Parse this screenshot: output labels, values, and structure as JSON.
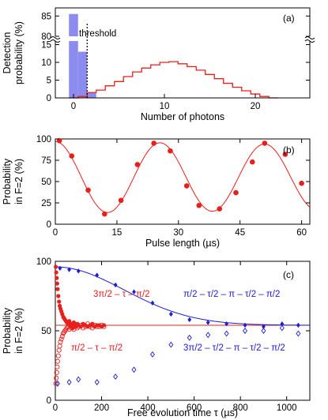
{
  "colors": {
    "red": "#e8201c",
    "blue": "#1e1ed2",
    "histfill": "#8c8cf0",
    "axis": "#000000"
  },
  "chart_data": [
    {
      "type": "bar",
      "panel_label": "(a)",
      "xlabel": "Number of photons",
      "ylabel_line1": "Detection",
      "ylabel_line2": "probability (%)",
      "xlim": [
        -2,
        26
      ],
      "ylim_lower": [
        0,
        16
      ],
      "ylim_upper": [
        80,
        87
      ],
      "xticks": [
        0,
        10,
        20
      ],
      "yticks_lower": [
        0,
        5,
        10,
        15
      ],
      "yticks_upper": [
        80,
        85
      ],
      "annotation": "threshold",
      "threshold_x": 1.5,
      "series": [
        {
          "style": "filled",
          "x": [
            -0.5,
            0.5,
            1.5
          ],
          "values": [
            85.5,
            13.0,
            1.5
          ]
        },
        {
          "style": "step",
          "x": [
            -0.5,
            0.5,
            1.5,
            2.5,
            3.5,
            4.5,
            5.5,
            6.5,
            7.5,
            8.5,
            9.5,
            10.5,
            11.5,
            12.5,
            13.5,
            14.5,
            15.5,
            16.5,
            17.5,
            18.5,
            19.5,
            20.5,
            21.5
          ],
          "values": [
            0,
            0.4,
            1.5,
            2.2,
            3.4,
            4.6,
            6.0,
            7.3,
            8.4,
            9.3,
            10.0,
            10.2,
            9.6,
            8.8,
            7.8,
            6.6,
            5.4,
            4.1,
            3.0,
            2.0,
            1.1,
            0.4,
            0
          ]
        }
      ]
    },
    {
      "type": "scatter",
      "panel_label": "(b)",
      "xlabel": "Pulse length (µs)",
      "ylabel_line1": "Probability",
      "ylabel_line2": "in F=2 (%)",
      "xlim": [
        0,
        62
      ],
      "ylim": [
        0,
        100
      ],
      "xticks": [
        0,
        15,
        30,
        45,
        60
      ],
      "yticks": [
        0,
        25,
        50,
        75,
        100
      ],
      "fit": {
        "offset": 55,
        "amplitude": 42,
        "period": 25.5,
        "decay_tau": 700
      },
      "series": [
        {
          "x": [
            1,
            4,
            8,
            12,
            16,
            20,
            24,
            28,
            32,
            35,
            40,
            44,
            48,
            51,
            56,
            60
          ],
          "values": [
            98,
            80,
            40,
            12,
            28,
            70,
            95,
            86,
            45,
            22,
            18,
            37,
            73,
            95,
            82,
            48
          ]
        }
      ]
    },
    {
      "type": "scatter",
      "panel_label": "(c)",
      "xlabel": "Free evolution time τ (µs)",
      "ylabel_line1": "Probability",
      "ylabel_line2": "in F=2 (%)",
      "xlim": [
        0,
        1100
      ],
      "ylim": [
        0,
        100
      ],
      "xticks": [
        0,
        200,
        400,
        600,
        800,
        1000
      ],
      "yticks": [
        0,
        50,
        100
      ],
      "baseline": 54,
      "series": [
        {
          "name": "3π/2 – τ – π/2",
          "marker": "filled-circle",
          "color": "red",
          "x": [
            2,
            4,
            6,
            8,
            10,
            13,
            16,
            19,
            22,
            26,
            30,
            34,
            38,
            42,
            46,
            50,
            55,
            60,
            65,
            70,
            75,
            80,
            85,
            90,
            95,
            100,
            110,
            120,
            130,
            140,
            150,
            160,
            170,
            180,
            190,
            200,
            210
          ],
          "values": [
            96,
            92,
            88,
            84,
            80,
            75,
            71,
            68,
            66,
            64,
            62,
            60,
            59,
            58,
            57,
            56,
            55,
            57,
            53,
            55,
            52,
            56,
            54,
            53,
            55,
            54,
            53,
            55,
            54,
            53,
            54,
            55,
            53,
            54,
            54,
            53,
            54
          ]
        },
        {
          "name": "π/2 – τ – π/2",
          "marker": "open-circle",
          "color": "red",
          "x": [
            2,
            4,
            6,
            8,
            10,
            13,
            16,
            19,
            22,
            26,
            30,
            34,
            38,
            42,
            46,
            50,
            55,
            60,
            65,
            70,
            75,
            80,
            85,
            90,
            95,
            100,
            110,
            120,
            130,
            140,
            150,
            160,
            170,
            180,
            190,
            200,
            210
          ],
          "values": [
            12,
            16,
            20,
            24,
            28,
            32,
            36,
            39,
            42,
            44,
            46,
            48,
            49,
            50,
            51,
            52,
            53,
            51,
            54,
            52,
            55,
            51,
            53,
            54,
            52,
            53,
            54,
            52,
            53,
            55,
            53,
            52,
            54,
            53,
            53,
            54,
            53
          ]
        },
        {
          "name": "π/2 – τ/2 – π – τ/2 – π/2",
          "marker": "filled-diamond",
          "color": "blue",
          "x": [
            20,
            60,
            100,
            180,
            260,
            340,
            420,
            500,
            580,
            660,
            740,
            820,
            900,
            980,
            1050
          ],
          "values": [
            95,
            94,
            93,
            90,
            83,
            78,
            70,
            62,
            58,
            56,
            55,
            54,
            53,
            55,
            54
          ]
        },
        {
          "name": "3π/2 – τ/2 – π – τ/2 – π/2",
          "marker": "open-diamond",
          "color": "blue",
          "x": [
            10,
            60,
            100,
            180,
            260,
            340,
            420,
            500,
            580,
            660,
            740,
            820,
            900,
            980,
            1050
          ],
          "values": [
            12,
            13,
            15,
            13,
            17,
            22,
            33,
            40,
            45,
            47,
            48,
            50,
            50,
            52,
            48
          ]
        }
      ]
    }
  ]
}
